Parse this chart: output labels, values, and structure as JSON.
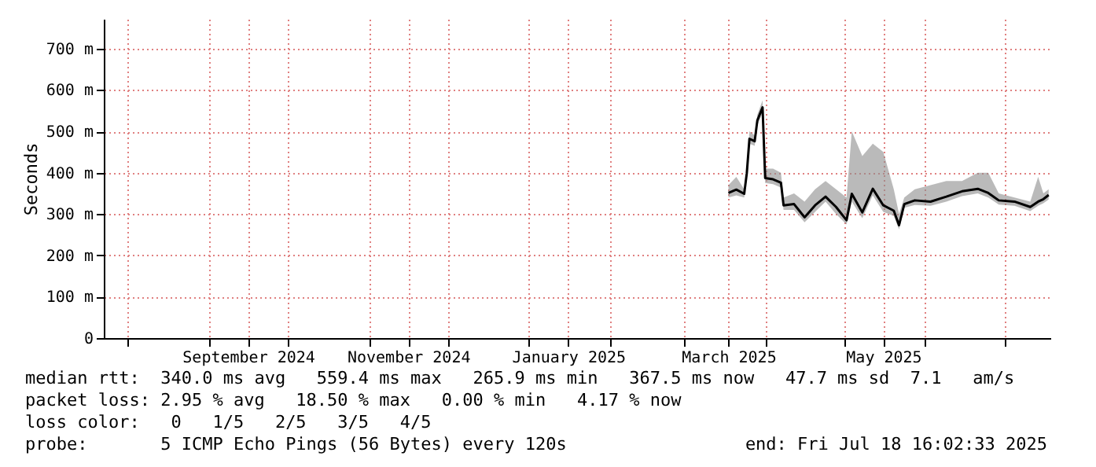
{
  "chart_data": {
    "type": "line",
    "ylabel": "Seconds",
    "xlim": [
      "2024-07-23",
      "2025-07-18T16:02"
    ],
    "xticks": [
      {
        "value": "2024-08-01",
        "label": null
      },
      {
        "value": "2024-09-01",
        "label": null
      },
      {
        "value": "2024-09-16",
        "label": "September 2024"
      },
      {
        "value": "2024-10-01",
        "label": null
      },
      {
        "value": "2024-11-01",
        "label": null
      },
      {
        "value": "2024-11-16",
        "label": "November 2024"
      },
      {
        "value": "2024-12-01",
        "label": null
      },
      {
        "value": "2025-01-01",
        "label": null
      },
      {
        "value": "2025-01-16",
        "label": "January 2025"
      },
      {
        "value": "2025-02-01",
        "label": null
      },
      {
        "value": "2025-03-01",
        "label": null
      },
      {
        "value": "2025-03-18",
        "label": "March 2025"
      },
      {
        "value": "2025-04-01",
        "label": null
      },
      {
        "value": "2025-05-01",
        "label": null
      },
      {
        "value": "2025-05-16",
        "label": "May 2025"
      },
      {
        "value": "2025-06-01",
        "label": null
      },
      {
        "value": "2025-07-01",
        "label": null
      }
    ],
    "ylim": [
      0,
      772
    ],
    "yticks": [
      0,
      {
        "value": 100,
        "label": "100 m"
      },
      {
        "value": 200,
        "label": "200 m"
      },
      {
        "value": 300,
        "label": "300 m"
      },
      {
        "value": 400,
        "label": "400 m"
      },
      {
        "value": 500,
        "label": "500 m"
      },
      {
        "value": 600,
        "label": "600 m"
      },
      {
        "value": 700,
        "label": "700 m"
      }
    ],
    "grid": true,
    "x": [
      "2025-03-18",
      "2025-03-21",
      "2025-03-24",
      "2025-03-25",
      "2025-03-26",
      "2025-03-28",
      "2025-03-29",
      "2025-03-31",
      "2025-04-01",
      "2025-04-04",
      "2025-04-07",
      "2025-04-08",
      "2025-04-12",
      "2025-04-16",
      "2025-04-20",
      "2025-04-24",
      "2025-04-28",
      "2025-05-02",
      "2025-05-04",
      "2025-05-08",
      "2025-05-12",
      "2025-05-16",
      "2025-05-20",
      "2025-05-22",
      "2025-05-24",
      "2025-05-28",
      "2025-06-03",
      "2025-06-09",
      "2025-06-15",
      "2025-06-21",
      "2025-06-25",
      "2025-06-29",
      "2025-07-05",
      "2025-07-11",
      "2025-07-14",
      "2025-07-16",
      "2025-07-18"
    ],
    "series": [
      {
        "color": "#000000",
        "values": [
          351,
          359,
          349,
          399,
          482,
          476,
          526,
          558,
          387,
          384,
          376,
          321,
          324,
          292,
          321,
          342,
          317,
          285,
          349,
          304,
          361,
          321,
          308,
          273,
          324,
          333,
          330,
          342,
          355,
          361,
          351,
          333,
          330,
          317,
          330,
          336,
          346
        ],
        "lower": [
          340,
          345,
          340,
          385,
          470,
          465,
          515,
          545,
          375,
          372,
          364,
          310,
          310,
          280,
          305,
          330,
          300,
          275,
          330,
          290,
          345,
          305,
          295,
          263,
          315,
          322,
          320,
          330,
          343,
          350,
          340,
          323,
          320,
          307,
          320,
          326,
          335
        ],
        "upper": [
          370,
          390,
          360,
          410,
          500,
          490,
          540,
          575,
          410,
          410,
          400,
          340,
          350,
          330,
          360,
          380,
          360,
          340,
          500,
          440,
          470,
          450,
          360,
          300,
          340,
          360,
          370,
          380,
          380,
          400,
          400,
          350,
          340,
          330,
          390,
          350,
          360
        ]
      }
    ],
    "annotations": [
      "median rtt:  340.0 ms avg   559.4 ms max   265.9 ms min   367.5 ms now   47.7 ms sd  7.1   am/s",
      "packet loss: 2.95 % avg   18.50 % max   0.00 % min   4.17 % now",
      "loss color:   0   1/5   2/5   3/5   4/5",
      "probe:       5 ICMP Echo Pings (56 Bytes) every 120s",
      "end: Fri Jul 18 16:02:33 2025"
    ]
  }
}
